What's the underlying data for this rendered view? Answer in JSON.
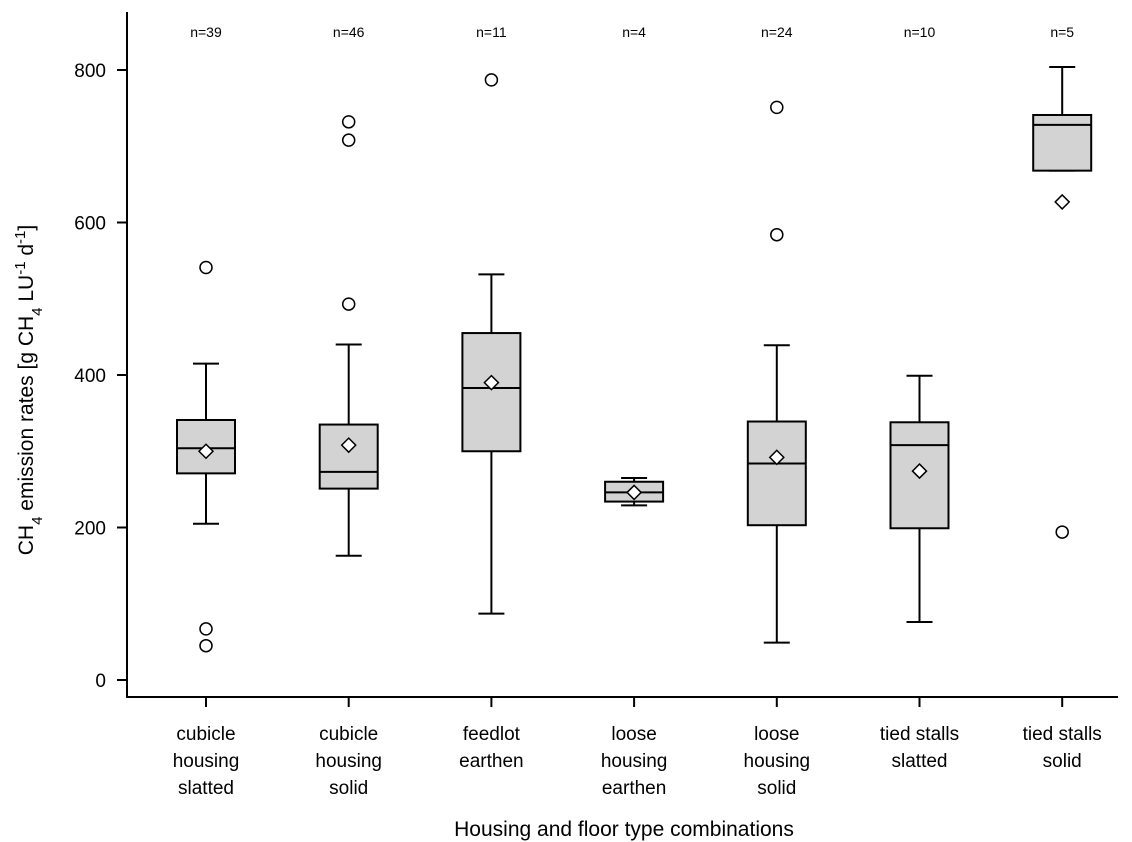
{
  "chart_data": {
    "type": "box",
    "xlabel": "Housing and floor type combinations",
    "ylabel": {
      "prefix": "CH",
      "prefix_sub": "4",
      "mid": " emission rates [g CH",
      "mid_sub": "4",
      "unit": " LU",
      "unit_sup": "-1",
      "unit2": " d",
      "unit2_sup": "-1",
      "suffix": "]"
    },
    "ylim": [
      -20,
      870
    ],
    "yticks": [
      0,
      200,
      400,
      600,
      800
    ],
    "grid": false,
    "colors": {
      "box_fill": "#d3d3d3",
      "stroke": "#000000"
    },
    "groups": [
      {
        "label_lines": [
          "cubicle",
          "housing",
          "slatted"
        ],
        "n_label": "n=39",
        "q1": 271,
        "median": 304,
        "q3": 341,
        "whisker_low": 205,
        "whisker_high": 415,
        "mean": 300,
        "outliers": [
          541,
          67,
          45
        ]
      },
      {
        "label_lines": [
          "cubicle",
          "housing",
          "solid"
        ],
        "n_label": "n=46",
        "q1": 251,
        "median": 273,
        "q3": 335,
        "whisker_low": 163,
        "whisker_high": 440,
        "mean": 308,
        "outliers": [
          732,
          708,
          493
        ]
      },
      {
        "label_lines": [
          "feedlot",
          "earthen"
        ],
        "n_label": "n=11",
        "q1": 300,
        "median": 383,
        "q3": 455,
        "whisker_low": 87,
        "whisker_high": 532,
        "mean": 390,
        "outliers": [
          787
        ]
      },
      {
        "label_lines": [
          "loose",
          "housing",
          "earthen"
        ],
        "n_label": "n=4",
        "q1": 234,
        "median": 246,
        "q3": 260,
        "whisker_low": 229,
        "whisker_high": 265,
        "mean": 246,
        "outliers": []
      },
      {
        "label_lines": [
          "loose",
          "housing",
          "solid"
        ],
        "n_label": "n=24",
        "q1": 203,
        "median": 284,
        "q3": 339,
        "whisker_low": 49,
        "whisker_high": 439,
        "mean": 292,
        "outliers": [
          751,
          584
        ]
      },
      {
        "label_lines": [
          "tied stalls",
          "slatted"
        ],
        "n_label": "n=10",
        "q1": 199,
        "median": 308,
        "q3": 338,
        "whisker_low": 76,
        "whisker_high": 399,
        "mean": 274,
        "outliers": []
      },
      {
        "label_lines": [
          "tied stalls",
          "solid"
        ],
        "n_label": "n=5",
        "q1": 668,
        "median": 728,
        "q3": 741,
        "whisker_low": 668,
        "whisker_high": 804,
        "mean": 627,
        "outliers": [
          194
        ]
      }
    ]
  }
}
